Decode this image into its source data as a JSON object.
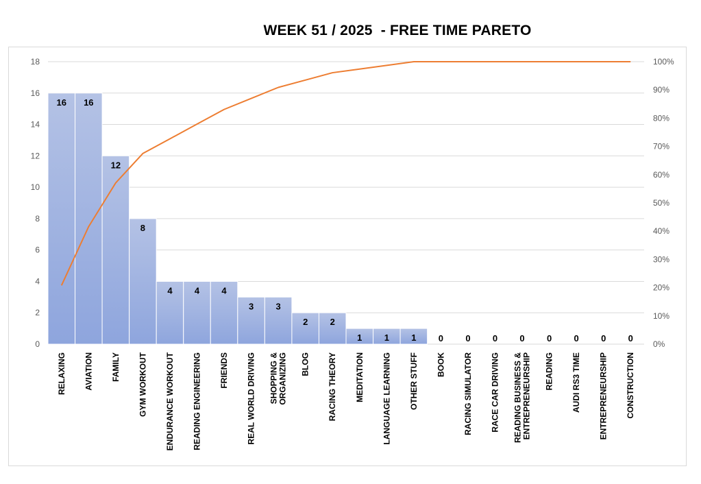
{
  "chart_data": {
    "type": "bar",
    "title": "WEEK 51 / 2025  - FREE TIME PARETO",
    "categories": [
      [
        "RELAXING"
      ],
      [
        "AVIATION"
      ],
      [
        "FAMILY"
      ],
      [
        "GYM WORKOUT"
      ],
      [
        "ENDURANCE WORKOUT"
      ],
      [
        "READING ENGINEERING"
      ],
      [
        "FRIENDS"
      ],
      [
        "REAL WORLD DRIVING"
      ],
      [
        "SHOPPING &",
        "ORGANIZING"
      ],
      [
        "BLOG"
      ],
      [
        "RACING THEORY"
      ],
      [
        "MEDITATION"
      ],
      [
        "LANGUAGE LEARNING"
      ],
      [
        "OTHER STUFF"
      ],
      [
        "BOOK"
      ],
      [
        "RACING SIMULATOR"
      ],
      [
        "RACE CAR DRIVING"
      ],
      [
        "READING BUSINESS &",
        "ENTREPRENEURSHIP"
      ],
      [
        "READING"
      ],
      [
        "AUDI RS3 TIME"
      ],
      [
        "ENTREPRENEURSHIP"
      ],
      [
        "CONSTRUCTION"
      ]
    ],
    "series": [
      {
        "type": "bar",
        "values": [
          16,
          16,
          12,
          8,
          4,
          4,
          4,
          3,
          3,
          2,
          2,
          1,
          1,
          1,
          0,
          0,
          0,
          0,
          0,
          0,
          0,
          0
        ]
      },
      {
        "type": "line",
        "axis": "secondary",
        "values": [
          20.8,
          41.6,
          57.1,
          67.5,
          72.7,
          77.9,
          83.1,
          87.0,
          90.9,
          93.5,
          96.1,
          97.4,
          98.7,
          100,
          100,
          100,
          100,
          100,
          100,
          100,
          100,
          100
        ]
      }
    ],
    "y_left": {
      "range": [
        0,
        18
      ],
      "ticks": [
        "0",
        "2",
        "4",
        "6",
        "8",
        "10",
        "12",
        "14",
        "16",
        "18"
      ]
    },
    "y_right": {
      "range": [
        0,
        100
      ],
      "ticks": [
        "0%",
        "10%",
        "20%",
        "30%",
        "40%",
        "50%",
        "60%",
        "70%",
        "80%",
        "90%",
        "100%"
      ]
    },
    "grid": true,
    "data_labels": true,
    "colors": {
      "bar_top": "#b4c2e5",
      "bar_bottom": "#8ea5dd",
      "bar_edge": "#ffffff",
      "line": "#ed7d31",
      "grid": "#d9d9d9"
    }
  }
}
